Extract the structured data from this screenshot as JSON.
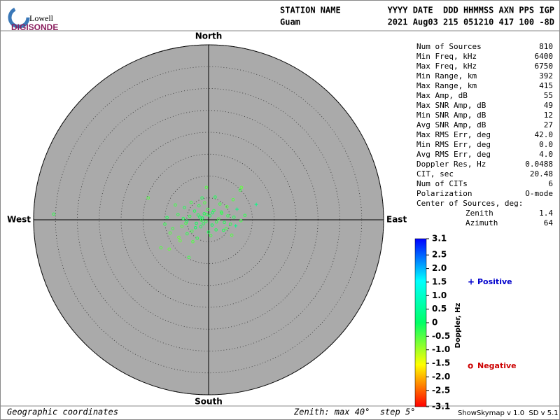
{
  "header": {
    "logo_top": "Lowell",
    "logo_bottom": "DIGISONDE",
    "columns": [
      "STATION NAME",
      "YYYY DATE  DDD HHMMSS AXN PPS IGP"
    ],
    "values": [
      "Guam",
      "2021 Aug03 215 051210 417 100 -8D"
    ]
  },
  "stats": {
    "rows": [
      [
        "Num of Sources",
        "810"
      ],
      [
        "Min Freq, kHz",
        "6400"
      ],
      [
        "Max Freq, kHz",
        "6750"
      ],
      [
        "Min Range, km",
        "392"
      ],
      [
        "Max Range, km",
        "415"
      ],
      [
        "Max Amp, dB",
        "55"
      ],
      [
        "Max SNR Amp, dB",
        "49"
      ],
      [
        "Min SNR Amp, dB",
        "12"
      ],
      [
        "Avg SNR Amp, dB",
        "27"
      ],
      [
        "Max RMS Err, deg",
        "42.0"
      ],
      [
        "Min RMS Err, deg",
        "0.0"
      ],
      [
        "Avg RMS Err, deg",
        "4.0"
      ],
      [
        "Doppler Res, Hz",
        "0.0488"
      ],
      [
        "CIT, sec",
        "20.48"
      ],
      [
        "Num of CITs",
        "6"
      ],
      [
        "Polarization",
        "O-mode"
      ]
    ],
    "center_title": "Center of Sources, deg:",
    "center_rows": [
      [
        "Zenith",
        "1.4"
      ],
      [
        "Azimuth",
        "64"
      ]
    ]
  },
  "chart_data": {
    "type": "polar-scatter",
    "directions": {
      "north": "North",
      "east": "East",
      "south": "South",
      "west": "West"
    },
    "rlim": [
      0,
      40
    ],
    "rticks": [
      5,
      10,
      15,
      20,
      25,
      30,
      35,
      40
    ],
    "x": [
      -35.4,
      -13.8,
      7.5,
      7.2,
      10.9,
      -10.9,
      -9.0,
      -4.5,
      -0.5,
      -10.0,
      -9.5,
      -8.2,
      -7.0,
      -6.1,
      -5.5,
      -5.0,
      -4.3,
      -3.8,
      -3.2,
      -2.8,
      -2.2,
      -1.8,
      -1.4,
      -1.0,
      -0.6,
      -0.2,
      0.3,
      0.8,
      1.2,
      1.7,
      2.3,
      2.9,
      3.6,
      4.2,
      5.0,
      5.8,
      6.5,
      7.4,
      8.3,
      -8.8,
      -7.6,
      -6.8,
      -5.8,
      -4.9,
      -4.0,
      -3.0,
      -2.4,
      -1.6,
      -0.9,
      0.0,
      0.9,
      1.8,
      2.6,
      3.4,
      4.4,
      5.3,
      6.2,
      -2.0,
      -1.2,
      -0.4,
      0.5,
      -3.6,
      -2.6,
      -1.5,
      4.0,
      5.6,
      3.0,
      -6.5,
      -5.2,
      1.5
    ],
    "y": [
      1.3,
      5.0,
      7.4,
      6.8,
      3.5,
      -6.4,
      -6.7,
      -8.6,
      7.4,
      -1.0,
      0.5,
      -2.0,
      1.2,
      -1.5,
      2.8,
      -0.3,
      0.8,
      -2.6,
      2.0,
      -0.8,
      3.2,
      -1.6,
      0.4,
      1.4,
      -0.4,
      2.4,
      0.9,
      -1.2,
      2.1,
      -2.3,
      0.2,
      1.8,
      -0.6,
      3.0,
      -1.0,
      0.6,
      2.4,
      -0.2,
      1.0,
      -3.0,
      3.4,
      -4.0,
      0.3,
      -3.2,
      4.0,
      -1.8,
      1.1,
      -0.1,
      3.9,
      -2.8,
      1.6,
      -0.5,
      3.6,
      -2.4,
      0.9,
      -3.5,
      -1.4,
      0.6,
      -0.9,
      1.2,
      -3.6,
      -5.0,
      -4.2,
      5.0,
      -2.0,
      4.6,
      1.5,
      -4.8,
      -0.8,
      5.2
    ],
    "doppler": [
      -0.3,
      -0.5,
      -0.6,
      -0.4,
      0.3,
      -0.5,
      -0.6,
      -0.4,
      -0.5,
      -0.3,
      -0.2,
      -0.4,
      -0.3,
      -0.5,
      -0.2,
      -0.1,
      -0.3,
      -0.4,
      -0.2,
      -0.1,
      -0.3,
      -0.2,
      -0.1,
      -0.2,
      -0.3,
      -0.4,
      -0.2,
      -0.1,
      -0.3,
      -0.2,
      -0.4,
      -0.3,
      -0.2,
      -0.5,
      -0.3,
      -0.2,
      0.2,
      -0.4,
      -0.3,
      -0.5,
      -0.4,
      -0.6,
      -0.2,
      -0.3,
      -0.4,
      -0.1,
      -0.2,
      -0.3,
      -0.5,
      -0.2,
      -0.1,
      -0.3,
      -0.4,
      -0.2,
      -0.3,
      -0.5,
      0.3,
      -0.1,
      -0.2,
      -0.3,
      -0.4,
      -0.5,
      -0.3,
      -0.2,
      -0.4,
      -0.5,
      -0.3,
      -0.6,
      -0.4,
      -0.2
    ],
    "colorbar": {
      "label": "Doppler, Hz",
      "lim": [
        -3.1,
        3.1
      ],
      "ticks": [
        3.1,
        2.5,
        {
          "value": 2,
          "label": "2.0"
        },
        1.5,
        {
          "value": 1,
          "label": "1.0"
        },
        0.5,
        0,
        -0.5,
        {
          "value": -1,
          "label": "-1.0"
        },
        -1.5,
        {
          "value": -2,
          "label": "-2.0"
        },
        -2.5,
        -3.1
      ],
      "colors": [
        "#ff0000",
        "#ffff00",
        "#00ff66",
        "#00ffff",
        "#0000ff"
      ]
    },
    "legend": [
      {
        "symbol": "+",
        "label": "Positive",
        "color": "#0000cc"
      },
      {
        "symbol": "o",
        "label": "Negative",
        "color": "#cc0000"
      }
    ],
    "plot_color": "#aaaaaa"
  },
  "footer": {
    "left": "Geographic coordinates",
    "center": "Zenith: max 40°  step 5°",
    "right": "ShowSkymap v 1.0  SD v 5.1"
  }
}
